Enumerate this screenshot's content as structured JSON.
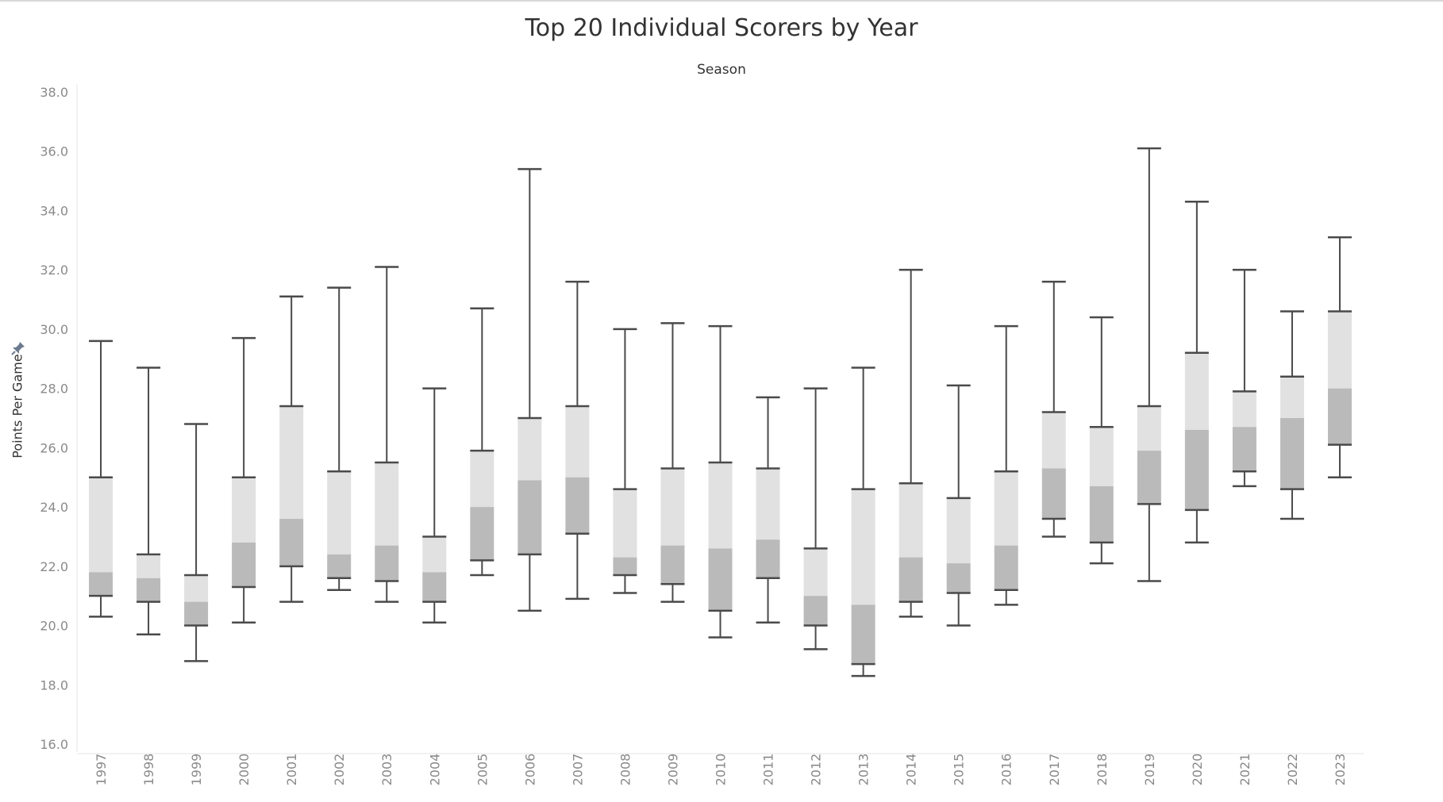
{
  "title": "Top 20 Individual Scorers by Year",
  "column_header": "Season",
  "colors": {
    "upper_box": "#e1e1e1",
    "lower_box": "#bababa",
    "whisker": "#4a4a4a",
    "axis_text": "#8a8a8a",
    "pin_icon": "#6b7a8f"
  },
  "icons": {
    "pin": "pin-icon"
  },
  "chart_data": {
    "type": "boxplot",
    "title": "Top 20 Individual Scorers by Year",
    "xlabel": "Season",
    "ylabel": "Points Per Game",
    "ylim": [
      16.0,
      38.0
    ],
    "yticks": [
      "16.0",
      "18.0",
      "20.0",
      "22.0",
      "24.0",
      "26.0",
      "28.0",
      "30.0",
      "32.0",
      "34.0",
      "36.0",
      "38.0"
    ],
    "categories": [
      "1997",
      "1998",
      "1999",
      "2000",
      "2001",
      "2002",
      "2003",
      "2004",
      "2005",
      "2006",
      "2007",
      "2008",
      "2009",
      "2010",
      "2011",
      "2012",
      "2013",
      "2014",
      "2015",
      "2016",
      "2017",
      "2018",
      "2019",
      "2020",
      "2021",
      "2022",
      "2023"
    ],
    "min": [
      20.3,
      19.7,
      18.8,
      20.1,
      20.8,
      21.2,
      20.8,
      20.1,
      21.7,
      20.5,
      20.9,
      21.1,
      20.8,
      19.6,
      20.1,
      19.2,
      18.3,
      20.3,
      20.0,
      20.7,
      23.0,
      22.1,
      21.5,
      22.8,
      24.7,
      23.6,
      25.0
    ],
    "q1": [
      21.0,
      20.8,
      20.0,
      21.3,
      22.0,
      21.6,
      21.5,
      20.8,
      22.2,
      22.4,
      23.1,
      21.7,
      21.4,
      20.5,
      21.6,
      20.0,
      18.7,
      20.8,
      21.1,
      21.2,
      23.6,
      22.8,
      24.1,
      23.9,
      25.2,
      24.6,
      26.1
    ],
    "median": [
      21.8,
      21.6,
      20.8,
      22.8,
      23.6,
      22.4,
      22.7,
      21.8,
      24.0,
      24.9,
      25.0,
      22.3,
      22.7,
      22.6,
      22.9,
      21.0,
      20.7,
      22.3,
      22.1,
      22.7,
      25.3,
      24.7,
      25.9,
      26.6,
      26.7,
      27.0,
      28.0
    ],
    "q3": [
      25.0,
      22.4,
      21.7,
      25.0,
      27.4,
      25.2,
      25.5,
      23.0,
      25.9,
      27.0,
      27.4,
      24.6,
      25.3,
      25.5,
      25.3,
      22.6,
      24.6,
      24.8,
      24.3,
      25.2,
      27.2,
      26.7,
      27.4,
      29.2,
      27.9,
      28.4,
      30.6
    ],
    "max": [
      29.6,
      28.7,
      26.8,
      29.7,
      31.1,
      31.4,
      32.1,
      28.0,
      30.7,
      35.4,
      31.6,
      30.0,
      30.2,
      30.1,
      27.7,
      28.0,
      28.7,
      32.0,
      28.1,
      30.1,
      31.6,
      30.4,
      36.1,
      34.3,
      32.0,
      30.6,
      33.1
    ]
  }
}
